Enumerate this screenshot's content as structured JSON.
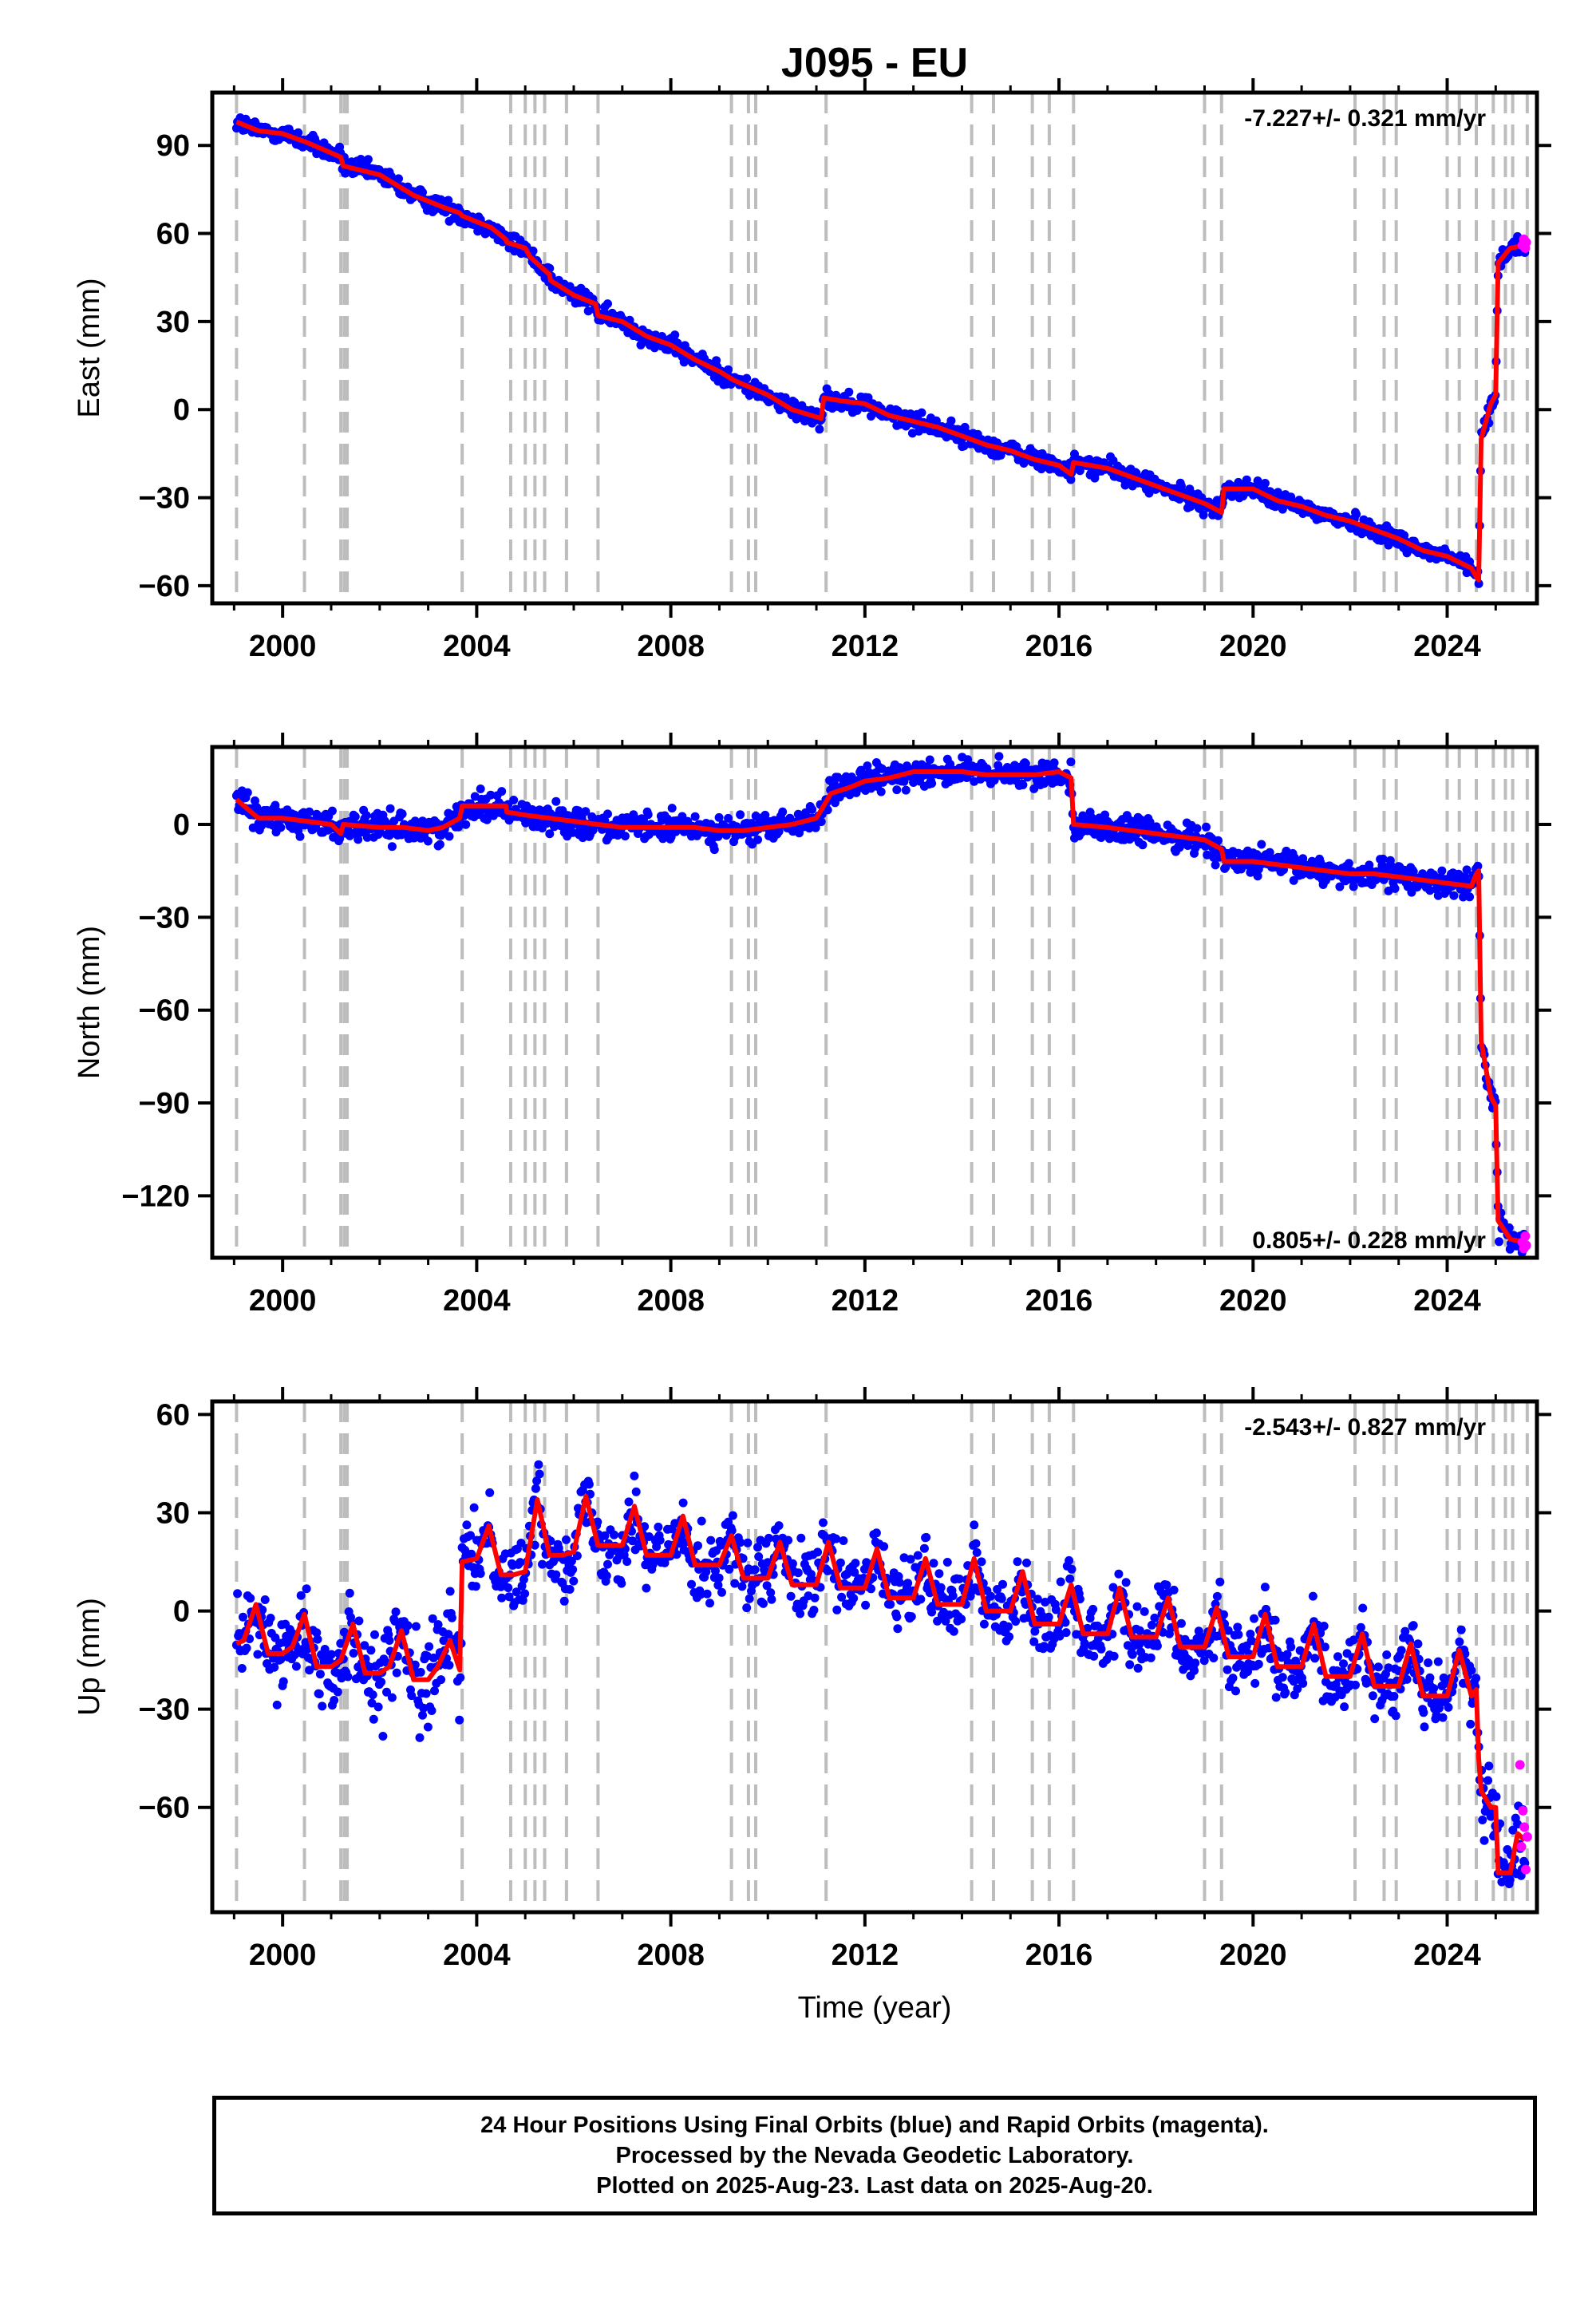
{
  "title": "J095 - EU",
  "colors": {
    "final_orbits": "#0000ff",
    "rapid_orbits": "#ff00ff",
    "model": "#ff0000",
    "event_lines": "#bdbdbd"
  },
  "chart_data": [
    {
      "type": "scatter",
      "component": "East",
      "ylabel": "East (mm)",
      "xlabel": "",
      "rate_text": "-7.227+/- 0.321 mm/yr",
      "rate_position": "top-right",
      "xlim": [
        1998.55,
        2025.85
      ],
      "ylim": [
        -66,
        108
      ],
      "xticks": [
        2000,
        2004,
        2008,
        2012,
        2016,
        2020,
        2024
      ],
      "xtick_labels": [
        "2000",
        "2004",
        "2008",
        "2012",
        "2016",
        "2020",
        "2024"
      ],
      "yticks": [
        -60,
        -30,
        0,
        30,
        60,
        90
      ],
      "ytick_labels": [
        "−60",
        "−30",
        "0",
        "30",
        "60",
        "90"
      ],
      "grid": false,
      "series": [
        {
          "kind": "model",
          "x": [
            1999.05,
            1999.5,
            2000.0,
            2000.5,
            2001.2,
            2001.25,
            2002.0,
            2002.7,
            2003.3,
            2003.65,
            2003.7,
            2004.3,
            2004.6,
            2004.62,
            2005.0,
            2005.1,
            2005.5,
            2005.52,
            2006.0,
            2006.45,
            2006.5,
            2007.0,
            2007.5,
            2008.0,
            2008.5,
            2009.0,
            2009.3,
            2010.0,
            2010.5,
            2011.1,
            2011.15,
            2011.5,
            2012.0,
            2012.5,
            2013.0,
            2013.5,
            2014.0,
            2014.5,
            2015.0,
            2015.5,
            2016.0,
            2016.25,
            2016.3,
            2017.0,
            2017.5,
            2018.0,
            2018.5,
            2019.0,
            2019.35,
            2019.4,
            2020.0,
            2020.5,
            2021.0,
            2021.5,
            2022.0,
            2022.5,
            2023.0,
            2023.5,
            2024.0,
            2024.5,
            2024.6,
            2024.65,
            2024.7,
            2024.9,
            2025.0,
            2025.05,
            2025.3,
            2025.6
          ],
          "y": [
            98,
            95,
            94,
            91,
            86,
            83,
            80,
            73,
            69,
            67,
            66,
            62,
            58,
            57,
            55,
            52,
            46,
            44,
            39,
            36,
            32,
            30,
            25,
            22,
            17,
            13,
            10,
            5,
            0,
            -3,
            4,
            3,
            2,
            -2,
            -4,
            -6,
            -9,
            -12,
            -14,
            -17,
            -19,
            -22,
            -18,
            -20,
            -23,
            -26,
            -29,
            -32,
            -35,
            -27,
            -27,
            -31,
            -33,
            -36,
            -38,
            -41,
            -44,
            -48,
            -50,
            -54,
            -57,
            -58,
            -10,
            2,
            5,
            50,
            55,
            56
          ]
        },
        {
          "kind": "rapid",
          "x": [
            2025.55,
            2025.58,
            2025.61,
            2025.63
          ],
          "y": [
            56,
            58,
            55,
            57
          ]
        }
      ]
    },
    {
      "type": "scatter",
      "component": "North",
      "ylabel": "North (mm)",
      "xlabel": "",
      "rate_text": "0.805+/- 0.228 mm/yr",
      "rate_position": "bottom-right",
      "xlim": [
        1998.55,
        2025.85
      ],
      "ylim": [
        -140,
        25
      ],
      "xticks": [
        2000,
        2004,
        2008,
        2012,
        2016,
        2020,
        2024
      ],
      "xtick_labels": [
        "2000",
        "2004",
        "2008",
        "2012",
        "2016",
        "2020",
        "2024"
      ],
      "yticks": [
        -120,
        -90,
        -60,
        -30,
        0
      ],
      "ytick_labels": [
        "−120",
        "−90",
        "−60",
        "−30",
        "0"
      ],
      "grid": false,
      "series": [
        {
          "kind": "model",
          "x": [
            1999.05,
            1999.5,
            2000.0,
            2000.5,
            2001.0,
            2001.2,
            2001.25,
            2002.0,
            2002.5,
            2003.0,
            2003.3,
            2003.65,
            2003.7,
            2004.0,
            2004.6,
            2004.62,
            2005.0,
            2005.5,
            2006.0,
            2006.5,
            2007.0,
            2007.5,
            2008.0,
            2008.5,
            2009.0,
            2009.5,
            2010.0,
            2010.5,
            2011.0,
            2011.3,
            2011.7,
            2012.0,
            2012.5,
            2013.0,
            2013.5,
            2014.0,
            2014.5,
            2015.0,
            2015.5,
            2016.0,
            2016.25,
            2016.3,
            2017.0,
            2017.5,
            2018.0,
            2018.5,
            2019.0,
            2019.35,
            2019.4,
            2020.0,
            2020.5,
            2021.0,
            2021.5,
            2022.0,
            2022.5,
            2023.0,
            2023.5,
            2024.0,
            2024.5,
            2024.6,
            2024.65,
            2024.7,
            2024.9,
            2025.0,
            2025.05,
            2025.3,
            2025.6
          ],
          "y": [
            8,
            2,
            2,
            1,
            0,
            -3,
            0,
            -1,
            -1,
            -2,
            -1,
            2,
            6,
            6,
            6,
            4,
            3,
            2,
            1,
            0,
            -1,
            -1,
            -1,
            -1,
            -2,
            -2,
            -1,
            0,
            2,
            10,
            12,
            14,
            15,
            17,
            17,
            17,
            16,
            16,
            16,
            17,
            15,
            0,
            -1,
            -2,
            -3,
            -4,
            -5,
            -8,
            -12,
            -12,
            -13,
            -14,
            -15,
            -16,
            -16,
            -17,
            -18,
            -19,
            -20,
            -16,
            -15,
            -70,
            -88,
            -91,
            -128,
            -134,
            -135
          ]
        },
        {
          "kind": "rapid",
          "x": [
            2025.55,
            2025.58,
            2025.61,
            2025.63
          ],
          "y": [
            -135,
            -137,
            -133,
            -136
          ]
        }
      ]
    },
    {
      "type": "scatter",
      "component": "Up",
      "ylabel": "Up (mm)",
      "xlabel": "Time (year)",
      "rate_text": "-2.543+/- 0.827 mm/yr",
      "rate_position": "top-right",
      "xlim": [
        1998.55,
        2025.85
      ],
      "ylim": [
        -92,
        64
      ],
      "xticks": [
        2000,
        2004,
        2008,
        2012,
        2016,
        2020,
        2024
      ],
      "xtick_labels": [
        "2000",
        "2004",
        "2008",
        "2012",
        "2016",
        "2020",
        "2024"
      ],
      "yticks": [
        -60,
        -30,
        0,
        30,
        60
      ],
      "ytick_labels": [
        "−60",
        "−30",
        "0",
        "30",
        "60"
      ],
      "grid": false,
      "series": [
        {
          "kind": "model",
          "x": [
            1999.05,
            1999.2,
            1999.45,
            1999.7,
            2000.0,
            2000.2,
            2000.45,
            2000.7,
            2001.0,
            2001.2,
            2001.45,
            2001.7,
            2002.0,
            2002.2,
            2002.45,
            2002.7,
            2003.0,
            2003.2,
            2003.45,
            2003.65,
            2003.7,
            2004.0,
            2004.25,
            2004.5,
            2004.75,
            2005.0,
            2005.25,
            2005.5,
            2005.75,
            2006.0,
            2006.25,
            2006.5,
            2006.75,
            2007.0,
            2007.25,
            2007.5,
            2007.75,
            2008.0,
            2008.25,
            2008.5,
            2008.75,
            2009.0,
            2009.25,
            2009.5,
            2009.75,
            2010.0,
            2010.25,
            2010.5,
            2010.75,
            2011.0,
            2011.25,
            2011.5,
            2011.75,
            2012.0,
            2012.25,
            2012.5,
            2012.75,
            2013.0,
            2013.25,
            2013.5,
            2013.75,
            2014.0,
            2014.25,
            2014.5,
            2014.75,
            2015.0,
            2015.25,
            2015.5,
            2015.75,
            2016.0,
            2016.25,
            2016.5,
            2016.75,
            2017.0,
            2017.25,
            2017.5,
            2017.75,
            2018.0,
            2018.25,
            2018.5,
            2018.75,
            2019.0,
            2019.25,
            2019.5,
            2019.75,
            2020.0,
            2020.25,
            2020.5,
            2020.75,
            2021.0,
            2021.25,
            2021.5,
            2021.75,
            2022.0,
            2022.25,
            2022.5,
            2022.75,
            2023.0,
            2023.25,
            2023.5,
            2023.75,
            2024.0,
            2024.25,
            2024.5,
            2024.6,
            2024.65,
            2024.7,
            2024.9,
            2025.0,
            2025.05,
            2025.3,
            2025.45,
            2025.6
          ],
          "y": [
            -10,
            -9,
            2,
            -13,
            -13,
            -11,
            -1,
            -17,
            -17,
            -15,
            -4,
            -19,
            -19,
            -17,
            -6,
            -21,
            -21,
            -17,
            -9,
            -18,
            15,
            16,
            26,
            11,
            11,
            12,
            34,
            17,
            17,
            18,
            35,
            20,
            20,
            20,
            32,
            17,
            17,
            17,
            29,
            14,
            14,
            14,
            23,
            10,
            10,
            10,
            21,
            8,
            8,
            8,
            21,
            7,
            7,
            7,
            19,
            4,
            4,
            4,
            16,
            2,
            2,
            2,
            16,
            0,
            0,
            0,
            12,
            -4,
            -4,
            -4,
            8,
            -7,
            -7,
            -7,
            7,
            -8,
            -8,
            -8,
            4,
            -11,
            -11,
            -11,
            1,
            -14,
            -14,
            -14,
            -1,
            -17,
            -17,
            -17,
            -4,
            -20,
            -20,
            -20,
            -7,
            -23,
            -23,
            -23,
            -10,
            -26,
            -26,
            -26,
            -12,
            -26,
            -24,
            -45,
            -55,
            -60,
            -60,
            -80,
            -80,
            -68,
            -70
          ]
        },
        {
          "kind": "rapid",
          "x": [
            2025.5,
            2025.53,
            2025.56,
            2025.59,
            2025.62,
            2025.65
          ],
          "y": [
            -47,
            -72,
            -61,
            -66,
            -79,
            -69
          ]
        }
      ]
    }
  ],
  "event_lines": [
    1999.05,
    2000.45,
    2001.2,
    2001.27,
    2001.33,
    2003.7,
    2004.7,
    2005.0,
    2005.2,
    2005.4,
    2005.85,
    2006.5,
    2009.25,
    2009.6,
    2009.75,
    2011.2,
    2014.2,
    2014.65,
    2015.45,
    2015.8,
    2016.3,
    2019.0,
    2019.35,
    2022.1,
    2022.7,
    2022.95,
    2024.0,
    2024.25,
    2024.6,
    2024.95,
    2025.2,
    2025.35,
    2025.65
  ],
  "caption": {
    "line1": "24 Hour Positions Using Final Orbits (blue) and Rapid Orbits (magenta).",
    "line2": "Processed by the Nevada Geodetic Laboratory.",
    "line3": "Plotted on 2025-Aug-23. Last data on 2025-Aug-20."
  }
}
